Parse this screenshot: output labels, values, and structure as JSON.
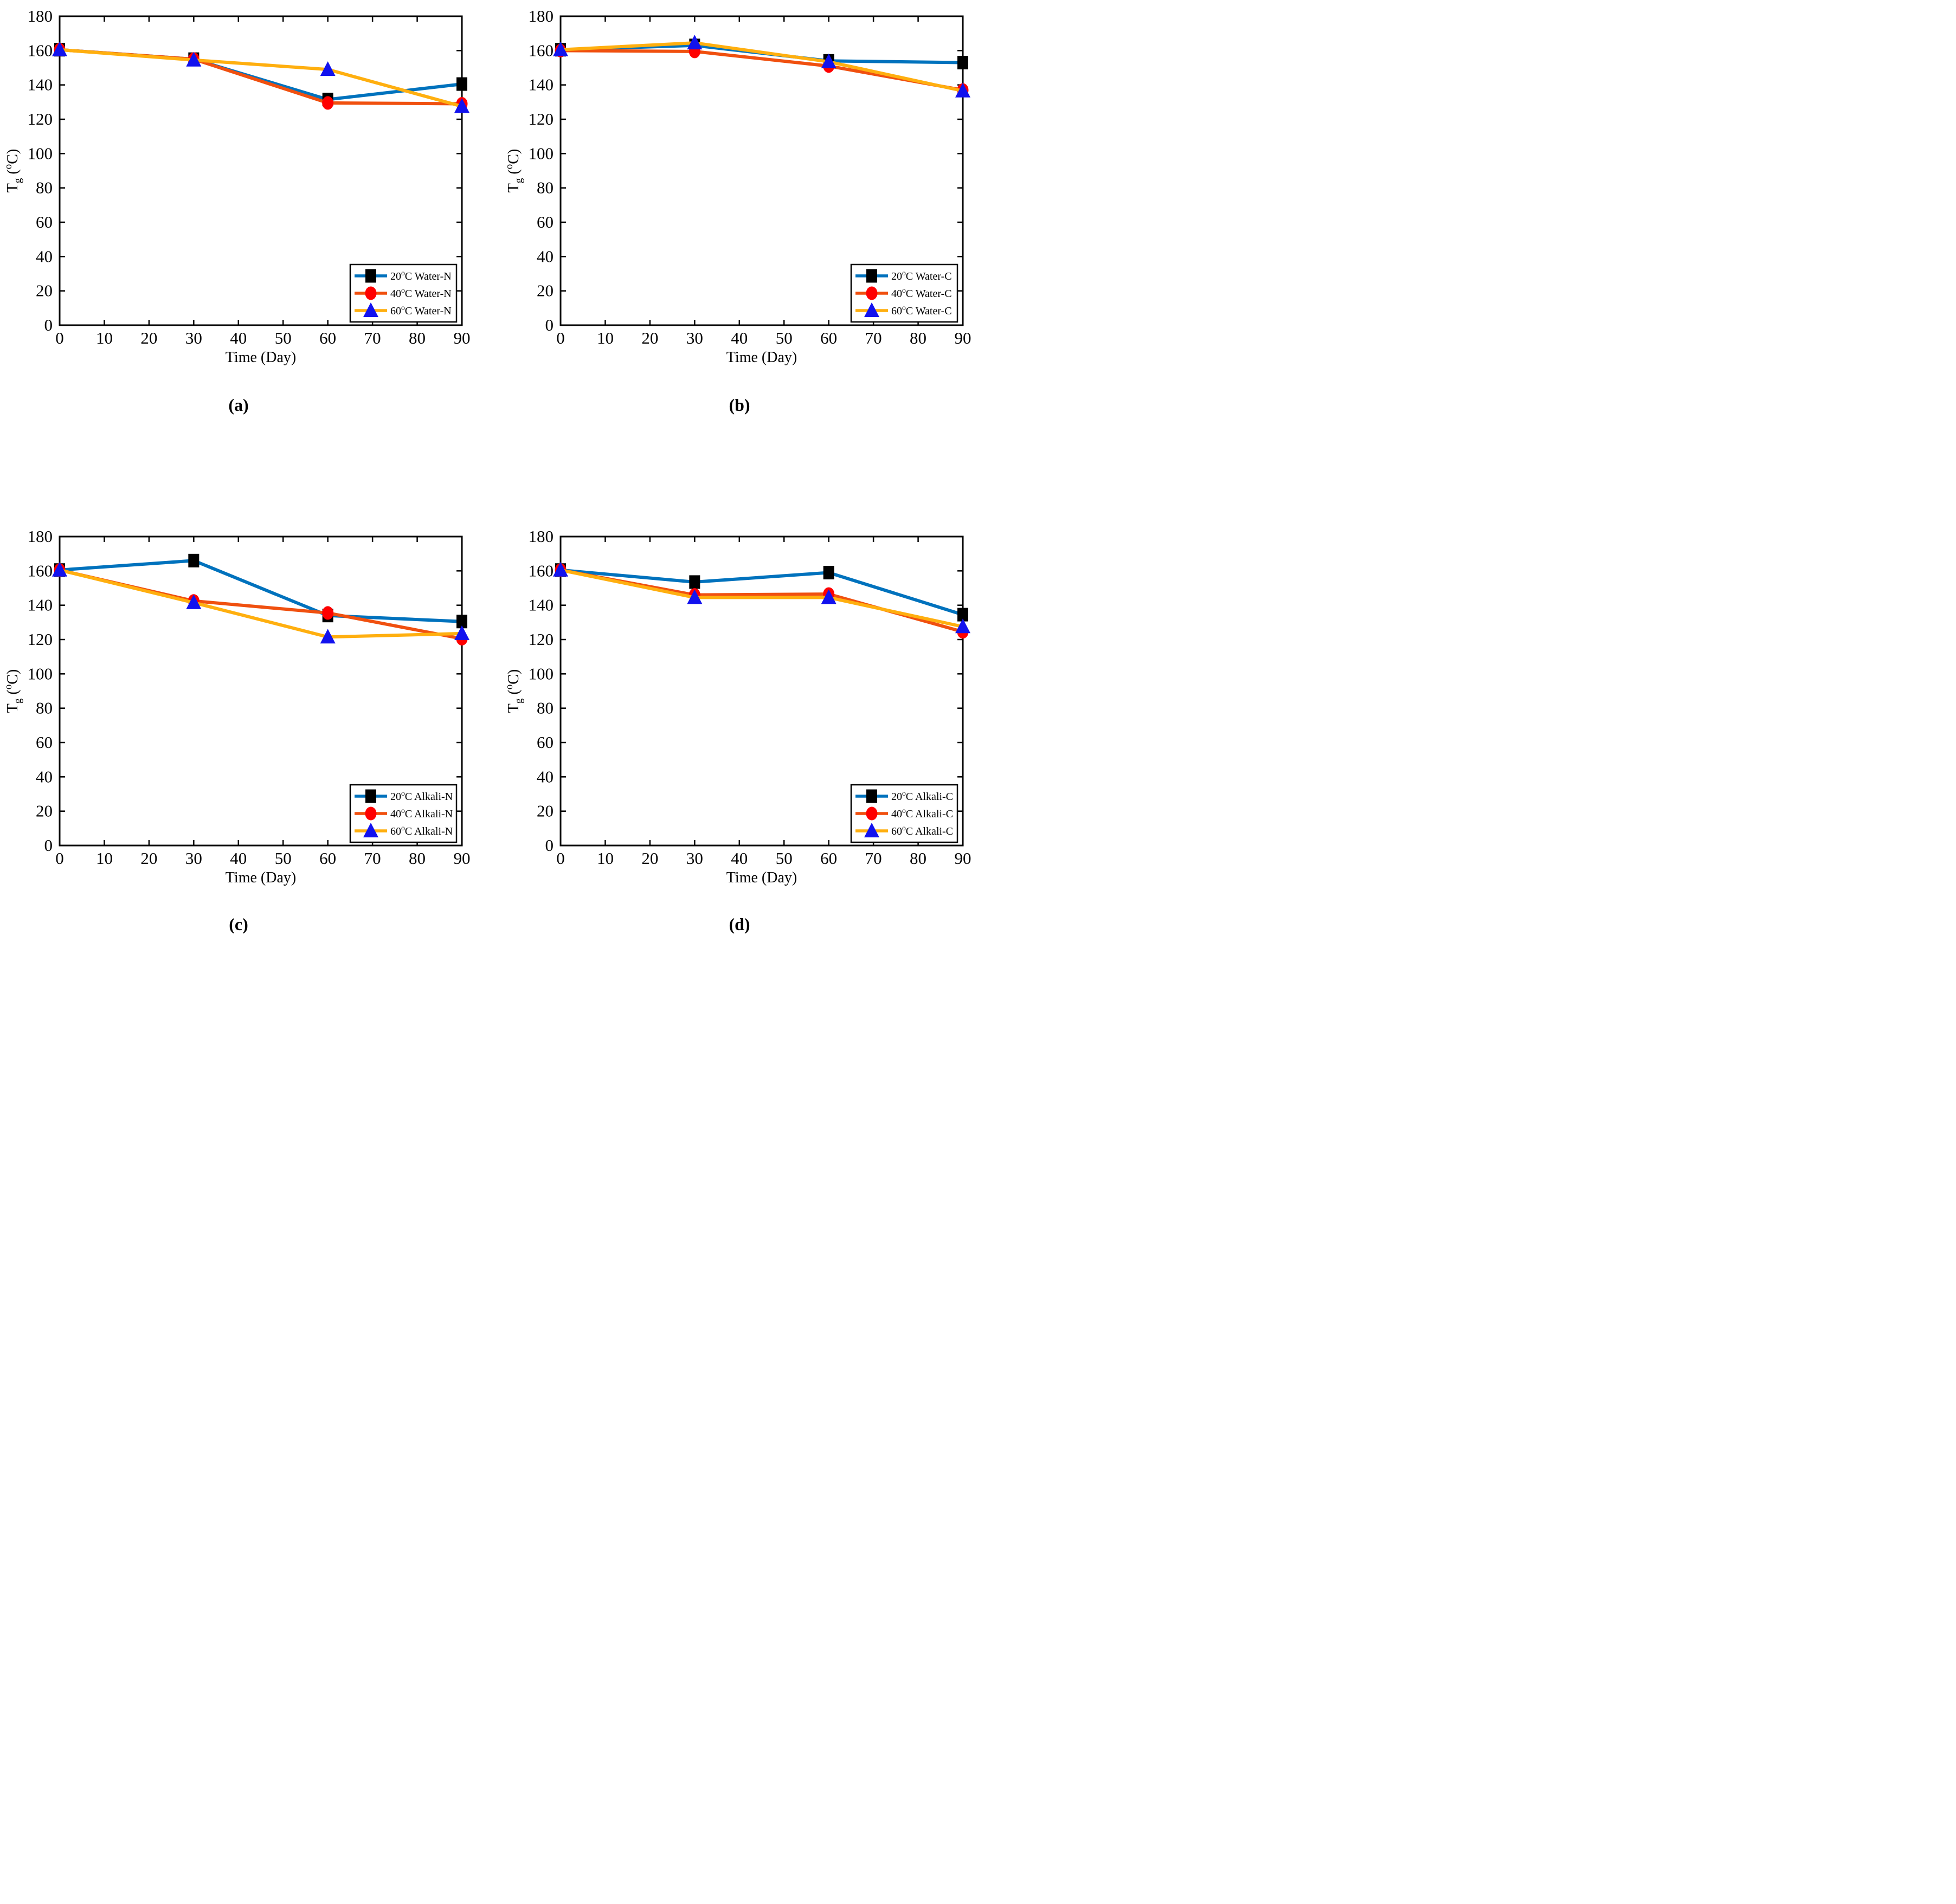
{
  "figure": {
    "background": "#ffffff",
    "frame_color": "#000000"
  },
  "chart_data": [
    {
      "type": "line",
      "caption": "(a)",
      "xlabel": "Time (Day)",
      "ylabel_parts": [
        {
          "text": "T"
        },
        {
          "text": "g",
          "shift": "sub"
        },
        {
          "text": " ("
        },
        {
          "text": "o",
          "shift": "sup"
        },
        {
          "text": "C)"
        }
      ],
      "xlim": [
        0,
        90
      ],
      "ylim": [
        0,
        180
      ],
      "x_ticks": [
        0,
        10,
        20,
        30,
        40,
        50,
        60,
        70,
        80,
        90
      ],
      "y_ticks": [
        0,
        20,
        40,
        60,
        80,
        100,
        120,
        140,
        160,
        180
      ],
      "x": [
        0,
        30,
        60,
        90
      ],
      "legend_position": "lower right",
      "series": [
        {
          "label_pre": "20",
          "label_sup": "o",
          "label_post": "C Water-N",
          "line_color": "#0072BD",
          "marker": "square",
          "marker_color": "#000000",
          "values": [
            160.5,
            155,
            131.5,
            140.5
          ]
        },
        {
          "label_pre": "40",
          "label_sup": "o",
          "label_post": "C Water-N",
          "line_color": "#F0500F",
          "marker": "circle",
          "marker_color": "#FF0000",
          "values": [
            160.5,
            155,
            129.5,
            129
          ]
        },
        {
          "label_pre": "60",
          "label_sup": "o",
          "label_post": "C Water-N",
          "line_color": "#FFAF0F",
          "marker": "triangle",
          "marker_color": "#1212EE",
          "values": [
            160.5,
            154.5,
            149,
            127.5
          ]
        }
      ]
    },
    {
      "type": "line",
      "caption": "(b)",
      "xlabel": "Time (Day)",
      "ylabel_parts": [
        {
          "text": "T"
        },
        {
          "text": "g",
          "shift": "sub"
        },
        {
          "text": " ("
        },
        {
          "text": "o",
          "shift": "sup"
        },
        {
          "text": "C)"
        }
      ],
      "xlim": [
        0,
        90
      ],
      "ylim": [
        0,
        180
      ],
      "x_ticks": [
        0,
        10,
        20,
        30,
        40,
        50,
        60,
        70,
        80,
        90
      ],
      "y_ticks": [
        0,
        20,
        40,
        60,
        80,
        100,
        120,
        140,
        160,
        180
      ],
      "x": [
        0,
        30,
        60,
        90
      ],
      "legend_position": "lower right",
      "series": [
        {
          "label_pre": "20",
          "label_sup": "o",
          "label_post": "C Water-C",
          "line_color": "#0072BD",
          "marker": "square",
          "marker_color": "#000000",
          "values": [
            160.5,
            163,
            154,
            153
          ]
        },
        {
          "label_pre": "40",
          "label_sup": "o",
          "label_post": "C Water-C",
          "line_color": "#F0500F",
          "marker": "circle",
          "marker_color": "#FF0000",
          "values": [
            160,
            159.5,
            151,
            137
          ]
        },
        {
          "label_pre": "60",
          "label_sup": "o",
          "label_post": "C Water-C",
          "line_color": "#FFAF0F",
          "marker": "triangle",
          "marker_color": "#1212EE",
          "values": [
            160.5,
            164.5,
            153.5,
            136.5
          ]
        }
      ]
    },
    {
      "type": "line",
      "caption": "(c)",
      "xlabel": "Time (Day)",
      "ylabel_parts": [
        {
          "text": "T"
        },
        {
          "text": "g",
          "shift": "sub"
        },
        {
          "text": " ("
        },
        {
          "text": "o",
          "shift": "sup"
        },
        {
          "text": "C)"
        }
      ],
      "xlim": [
        0,
        90
      ],
      "ylim": [
        0,
        180
      ],
      "x_ticks": [
        0,
        10,
        20,
        30,
        40,
        50,
        60,
        70,
        80,
        90
      ],
      "y_ticks": [
        0,
        20,
        40,
        60,
        80,
        100,
        120,
        140,
        160,
        180
      ],
      "x": [
        0,
        30,
        60,
        90
      ],
      "legend_position": "lower right",
      "series": [
        {
          "label_pre": "20",
          "label_sup": "o",
          "label_post": "C Alkali-N",
          "line_color": "#0072BD",
          "marker": "square",
          "marker_color": "#000000",
          "values": [
            160.5,
            166,
            134,
            130.5
          ]
        },
        {
          "label_pre": "40",
          "label_sup": "o",
          "label_post": "C Alkali-N",
          "line_color": "#F0500F",
          "marker": "circle",
          "marker_color": "#FF0000",
          "values": [
            160.5,
            142.5,
            135.5,
            120.5
          ]
        },
        {
          "label_pre": "60",
          "label_sup": "o",
          "label_post": "C Alkali-N",
          "line_color": "#FFAF0F",
          "marker": "triangle",
          "marker_color": "#1212EE",
          "values": [
            160.5,
            141.5,
            121.5,
            123.5
          ]
        }
      ]
    },
    {
      "type": "line",
      "caption": "(d)",
      "xlabel": "Time (Day)",
      "ylabel_parts": [
        {
          "text": "T"
        },
        {
          "text": "g",
          "shift": "sub"
        },
        {
          "text": " ("
        },
        {
          "text": "o",
          "shift": "sup"
        },
        {
          "text": "C)"
        }
      ],
      "xlim": [
        0,
        90
      ],
      "ylim": [
        0,
        180
      ],
      "x_ticks": [
        0,
        10,
        20,
        30,
        40,
        50,
        60,
        70,
        80,
        90
      ],
      "y_ticks": [
        0,
        20,
        40,
        60,
        80,
        100,
        120,
        140,
        160,
        180
      ],
      "x": [
        0,
        30,
        60,
        90
      ],
      "legend_position": "lower right",
      "series": [
        {
          "label_pre": "20",
          "label_sup": "o",
          "label_post": "C Alkali-C",
          "line_color": "#0072BD",
          "marker": "square",
          "marker_color": "#000000",
          "values": [
            160.5,
            153.5,
            159,
            134.5
          ]
        },
        {
          "label_pre": "40",
          "label_sup": "o",
          "label_post": "C Alkali-C",
          "line_color": "#F0500F",
          "marker": "circle",
          "marker_color": "#FF0000",
          "values": [
            160.5,
            146,
            146.5,
            124.5
          ]
        },
        {
          "label_pre": "60",
          "label_sup": "o",
          "label_post": "C Alkali-C",
          "line_color": "#FFAF0F",
          "marker": "triangle",
          "marker_color": "#1212EE",
          "values": [
            160.5,
            144.5,
            144.5,
            127.5
          ]
        }
      ]
    }
  ]
}
